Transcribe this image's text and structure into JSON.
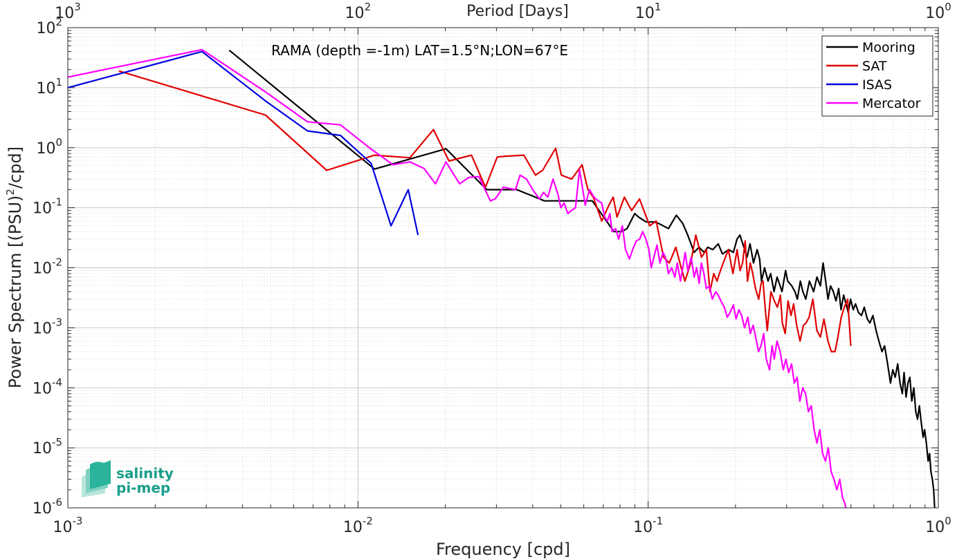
{
  "chart_data": {
    "type": "line",
    "title": "RAMA (depth =-1m) LAT=1.5°N;LON=67°E",
    "xlabel": "Frequency [cpd]",
    "ylabel_main": "Power Spectrum [(PSU)",
    "ylabel_sup": "2",
    "ylabel_tail": "/cpd]",
    "top_xlabel": "Period [Days]",
    "xscale": "log",
    "yscale": "log",
    "xlim": [
      0.001,
      1
    ],
    "ylim": [
      1e-06,
      100
    ],
    "grid": true,
    "legend_position": "top-right",
    "x_ticks": [
      {
        "value": 0.001,
        "base": "10",
        "exp": "-3"
      },
      {
        "value": 0.01,
        "base": "10",
        "exp": "-2"
      },
      {
        "value": 0.1,
        "base": "10",
        "exp": "-1"
      },
      {
        "value": 1,
        "base": "10",
        "exp": "0"
      }
    ],
    "y_ticks": [
      {
        "value": 100,
        "base": "10",
        "exp": "2"
      },
      {
        "value": 10,
        "base": "10",
        "exp": "1"
      },
      {
        "value": 1,
        "base": "10",
        "exp": "0"
      },
      {
        "value": 0.1,
        "base": "10",
        "exp": "-1"
      },
      {
        "value": 0.01,
        "base": "10",
        "exp": "-2"
      },
      {
        "value": 0.001,
        "base": "10",
        "exp": "-3"
      },
      {
        "value": 0.0001,
        "base": "10",
        "exp": "-4"
      },
      {
        "value": 1e-05,
        "base": "10",
        "exp": "-5"
      },
      {
        "value": 1e-06,
        "base": "10",
        "exp": "-6"
      }
    ],
    "top_ticks": [
      {
        "value": 0.001,
        "base": "10",
        "exp": "3"
      },
      {
        "value": 0.01,
        "base": "10",
        "exp": "2"
      },
      {
        "value": 0.1,
        "base": "10",
        "exp": "1"
      },
      {
        "value": 1,
        "base": "10",
        "exp": "0"
      }
    ],
    "series": [
      {
        "name": "Mooring",
        "color": "#000000",
        "x": [
          0.0036,
          0.0114,
          0.0201,
          0.0278,
          0.0353,
          0.0439,
          0.0642,
          0.0762,
          0.081,
          0.0846,
          0.0899,
          0.0926,
          0.0984,
          0.1046,
          0.1085,
          0.1175,
          0.1251,
          0.1315,
          0.1369,
          0.144,
          0.1498,
          0.1559,
          0.1605,
          0.167,
          0.1744,
          0.1803,
          0.1896,
          0.1966,
          0.2024,
          0.2072,
          0.2137,
          0.2192,
          0.2245,
          0.2307,
          0.2375,
          0.2423,
          0.2459,
          0.2519,
          0.259,
          0.2643,
          0.2715,
          0.2782,
          0.285,
          0.2892,
          0.2976,
          0.3026,
          0.3125,
          0.3206,
          0.3267,
          0.3345,
          0.3414,
          0.3494,
          0.3596,
          0.3718,
          0.3817,
          0.3924,
          0.4009,
          0.4091,
          0.4167,
          0.4252,
          0.4348,
          0.4439,
          0.4535,
          0.462,
          0.4718,
          0.4807,
          0.4896,
          0.4984,
          0.509,
          0.5186,
          0.5305,
          0.5436,
          0.5558,
          0.5693,
          0.581,
          0.5953,
          0.6103,
          0.624,
          0.6396,
          0.653,
          0.6685,
          0.6844,
          0.6966,
          0.7103,
          0.7244,
          0.7383,
          0.7516,
          0.762,
          0.7744,
          0.7858,
          0.798,
          0.8104,
          0.8235,
          0.8362,
          0.8479,
          0.8601,
          0.8744,
          0.8867,
          0.897,
          0.9093,
          0.9226,
          0.9331,
          0.9427,
          0.9537,
          0.9639,
          0.9715
        ],
        "y": [
          42,
          0.44,
          0.96,
          0.2,
          0.2,
          0.13,
          0.13,
          0.04,
          0.04,
          0.045,
          0.08,
          0.07,
          0.058,
          0.058,
          0.055,
          0.045,
          0.075,
          0.055,
          0.035,
          0.018,
          0.022,
          0.018,
          0.022,
          0.02,
          0.025,
          0.017,
          0.02,
          0.018,
          0.03,
          0.035,
          0.022,
          0.015,
          0.025,
          0.012,
          0.02,
          0.014,
          0.006,
          0.01,
          0.006,
          0.008,
          0.004,
          0.007,
          0.005,
          0.004,
          0.009,
          0.006,
          0.005,
          0.004,
          0.003,
          0.006,
          0.004,
          0.003,
          0.006,
          0.004,
          0.007,
          0.005,
          0.012,
          0.006,
          0.003,
          0.005,
          0.004,
          0.0028,
          0.0045,
          0.002,
          0.0035,
          0.0025,
          0.0018,
          0.003,
          0.002,
          0.0025,
          0.0018,
          0.0016,
          0.0022,
          0.0014,
          0.0012,
          0.0016,
          0.0009,
          0.0006,
          0.0004,
          0.0005,
          0.00025,
          0.00012,
          0.0002,
          0.00015,
          0.00025,
          0.00012,
          8e-05,
          0.00018,
          7e-05,
          0.00012,
          0.00015,
          6e-05,
          0.0001,
          4e-05,
          3e-05,
          5e-05,
          2.5e-05,
          1.5e-05,
          2e-05,
          1.2e-05,
          6e-06,
          8e-06,
          4e-06,
          3e-06,
          2e-06,
          1e-06
        ]
      },
      {
        "name": "SAT",
        "color": "#e00000",
        "x": [
          0.0015,
          0.0048,
          0.0078,
          0.0114,
          0.0151,
          0.0182,
          0.0206,
          0.0246,
          0.0275,
          0.0302,
          0.0322,
          0.0373,
          0.0409,
          0.0433,
          0.048,
          0.0502,
          0.0545,
          0.0592,
          0.062,
          0.0647,
          0.0692,
          0.0732,
          0.0758,
          0.0781,
          0.0828,
          0.0877,
          0.0934,
          0.1012,
          0.1066,
          0.113,
          0.1183,
          0.1246,
          0.1287,
          0.1339,
          0.1403,
          0.1459,
          0.1527,
          0.1588,
          0.1632,
          0.1683,
          0.1727,
          0.1761,
          0.1814,
          0.189,
          0.196,
          0.2025,
          0.2074,
          0.2115,
          0.216,
          0.22,
          0.225,
          0.2293,
          0.2344,
          0.2404,
          0.2451,
          0.2489,
          0.253,
          0.2574,
          0.2649,
          0.2722,
          0.2789,
          0.2856,
          0.2901,
          0.2967,
          0.3035,
          0.3106,
          0.3172,
          0.3249,
          0.3338,
          0.3429,
          0.3499,
          0.3587,
          0.3696,
          0.3814,
          0.3923,
          0.4035,
          0.4166,
          0.4279,
          0.4404,
          0.4508,
          0.4628,
          0.4744,
          0.4871,
          0.4992
        ],
        "y": [
          19,
          3.5,
          0.42,
          0.75,
          0.68,
          2.0,
          0.6,
          0.75,
          0.22,
          0.7,
          0.72,
          0.75,
          0.35,
          0.42,
          0.98,
          0.35,
          0.3,
          0.52,
          0.2,
          0.15,
          0.06,
          0.11,
          0.15,
          0.07,
          0.15,
          0.09,
          0.14,
          0.05,
          0.06,
          0.015,
          0.012,
          0.022,
          0.012,
          0.006,
          0.012,
          0.035,
          0.015,
          0.02,
          0.004,
          0.008,
          0.006,
          0.008,
          0.012,
          0.02,
          0.008,
          0.02,
          0.009,
          0.012,
          0.028,
          0.006,
          0.012,
          0.008,
          0.0045,
          0.003,
          0.0055,
          0.006,
          0.0022,
          0.0009,
          0.004,
          0.0028,
          0.0022,
          0.0035,
          0.0012,
          0.0008,
          0.0028,
          0.0016,
          0.0025,
          0.0011,
          0.0006,
          0.0011,
          0.0012,
          0.0015,
          0.003,
          0.0009,
          0.0007,
          0.0014,
          0.0006,
          0.0004,
          0.0004,
          0.0007,
          0.0015,
          0.0022,
          0.003,
          0.0005
        ]
      },
      {
        "name": "ISAS",
        "color": "#0000e0",
        "x": [
          0.001,
          0.0029,
          0.0048,
          0.0067,
          0.0087,
          0.0111,
          0.013,
          0.0149,
          0.0161
        ],
        "y": [
          10,
          40,
          6.0,
          1.9,
          1.6,
          0.55,
          0.05,
          0.2,
          0.035
        ]
      },
      {
        "name": "Mercator",
        "color": "#ff00ff",
        "x": [
          0.001,
          0.0029,
          0.0048,
          0.0067,
          0.0087,
          0.0111,
          0.0132,
          0.0151,
          0.0169,
          0.0185,
          0.0201,
          0.0224,
          0.0241,
          0.0261,
          0.0286,
          0.0297,
          0.0317,
          0.0349,
          0.0362,
          0.0381,
          0.04,
          0.0422,
          0.0436,
          0.0451,
          0.047,
          0.049,
          0.05,
          0.0513,
          0.0529,
          0.0544,
          0.0562,
          0.058,
          0.0607,
          0.0628,
          0.0651,
          0.0672,
          0.0691,
          0.0709,
          0.0724,
          0.0738,
          0.0751,
          0.0773,
          0.0791,
          0.0815,
          0.0836,
          0.0862,
          0.0884,
          0.091,
          0.0935,
          0.0957,
          0.0982,
          0.1006,
          0.1025,
          0.1047,
          0.1073,
          0.1098,
          0.1127,
          0.1152,
          0.1175,
          0.1205,
          0.1236,
          0.126,
          0.1292,
          0.1316,
          0.1342,
          0.137,
          0.1407,
          0.1441,
          0.1469,
          0.1499,
          0.1526,
          0.1556,
          0.1587,
          0.1627,
          0.1664,
          0.171,
          0.1744,
          0.1781,
          0.183,
          0.1874,
          0.1916,
          0.1966,
          0.2009,
          0.2056,
          0.21,
          0.2149,
          0.2205,
          0.2249,
          0.2301,
          0.2348,
          0.2401,
          0.2448,
          0.2501,
          0.2554,
          0.262,
          0.2674,
          0.272,
          0.2781,
          0.285,
          0.2919,
          0.2984,
          0.3051,
          0.312,
          0.319,
          0.3261,
          0.3333,
          0.341,
          0.3488,
          0.3568,
          0.3649,
          0.3732,
          0.3817,
          0.3904,
          0.3993,
          0.4084,
          0.4177,
          0.4273,
          0.437,
          0.447,
          0.4572,
          0.4676,
          0.4756,
          0.4806
        ],
        "y": [
          15,
          43,
          8.5,
          2.7,
          2.4,
          0.95,
          0.52,
          0.58,
          0.45,
          0.25,
          0.58,
          0.25,
          0.32,
          0.33,
          0.13,
          0.14,
          0.22,
          0.2,
          0.35,
          0.3,
          0.2,
          0.14,
          0.18,
          0.15,
          0.3,
          0.16,
          0.1,
          0.12,
          0.08,
          0.09,
          0.1,
          0.43,
          0.11,
          0.2,
          0.15,
          0.13,
          0.12,
          0.07,
          0.06,
          0.08,
          0.04,
          0.045,
          0.03,
          0.05,
          0.02,
          0.014,
          0.02,
          0.028,
          0.03,
          0.04,
          0.03,
          0.02,
          0.01,
          0.015,
          0.024,
          0.012,
          0.018,
          0.014,
          0.008,
          0.01,
          0.007,
          0.012,
          0.006,
          0.01,
          0.018,
          0.009,
          0.015,
          0.007,
          0.01,
          0.0055,
          0.012,
          0.008,
          0.0045,
          0.005,
          0.003,
          0.004,
          0.0035,
          0.0028,
          0.0022,
          0.0015,
          0.0018,
          0.0024,
          0.0014,
          0.002,
          0.0016,
          0.001,
          0.0015,
          0.0008,
          0.0011,
          0.0007,
          0.0004,
          0.0005,
          0.0008,
          0.0003,
          0.0002,
          0.0005,
          0.0003,
          0.0006,
          0.0004,
          0.0002,
          0.0003,
          0.00018,
          0.00025,
          0.00012,
          0.00015,
          6e-05,
          0.0001,
          8e-05,
          4e-05,
          5e-05,
          2e-05,
          1.2e-05,
          2e-05,
          8e-06,
          6e-06,
          1e-05,
          4e-06,
          3e-06,
          2e-06,
          3e-06,
          1.5e-06,
          1.2e-06,
          1e-06
        ]
      }
    ]
  },
  "logo": {
    "line1": "salinity",
    "line2": "pi-mep",
    "color": "#1a9e8b"
  }
}
